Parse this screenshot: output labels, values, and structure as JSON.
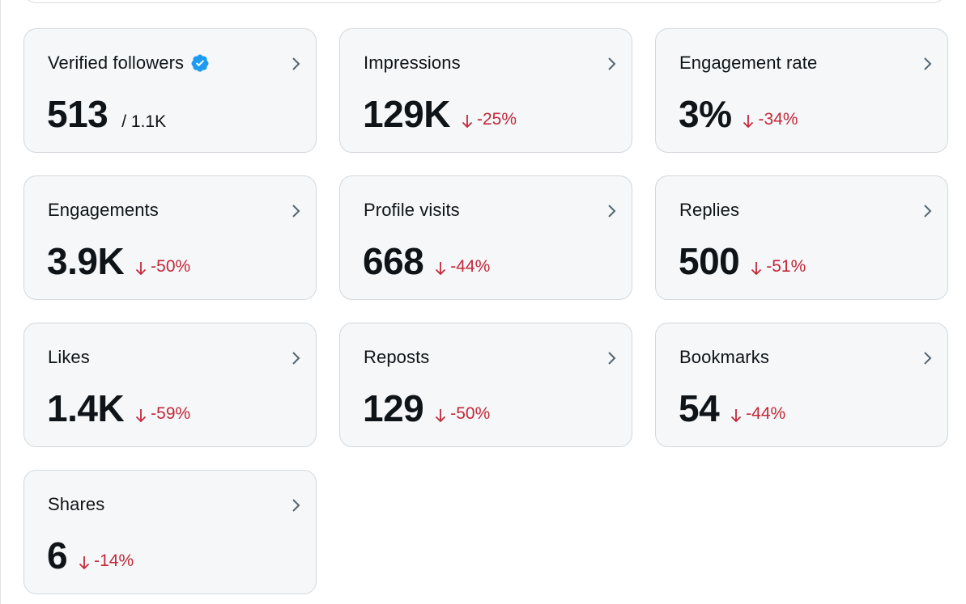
{
  "colors": {
    "card_background": "#f5f7f8",
    "card_border": "#d3d8dc",
    "text_primary": "#0f1419",
    "negative": "#c4283a",
    "verified_badge": "#1d9bf0",
    "chevron": "#536471"
  },
  "cards": [
    {
      "title": "Verified followers",
      "value": "513",
      "sub": "/ 1.1K",
      "verified_icon": "verified-badge-icon"
    },
    {
      "title": "Impressions",
      "value": "129K",
      "change": "-25%"
    },
    {
      "title": "Engagement rate",
      "value": "3%",
      "change": "-34%"
    },
    {
      "title": "Engagements",
      "value": "3.9K",
      "change": "-50%"
    },
    {
      "title": "Profile visits",
      "value": "668",
      "change": "-44%"
    },
    {
      "title": "Replies",
      "value": "500",
      "change": "-51%"
    },
    {
      "title": "Likes",
      "value": "1.4K",
      "change": "-59%"
    },
    {
      "title": "Reposts",
      "value": "129",
      "change": "-50%"
    },
    {
      "title": "Bookmarks",
      "value": "54",
      "change": "-44%"
    },
    {
      "title": "Shares",
      "value": "6",
      "change": "-14%"
    }
  ]
}
